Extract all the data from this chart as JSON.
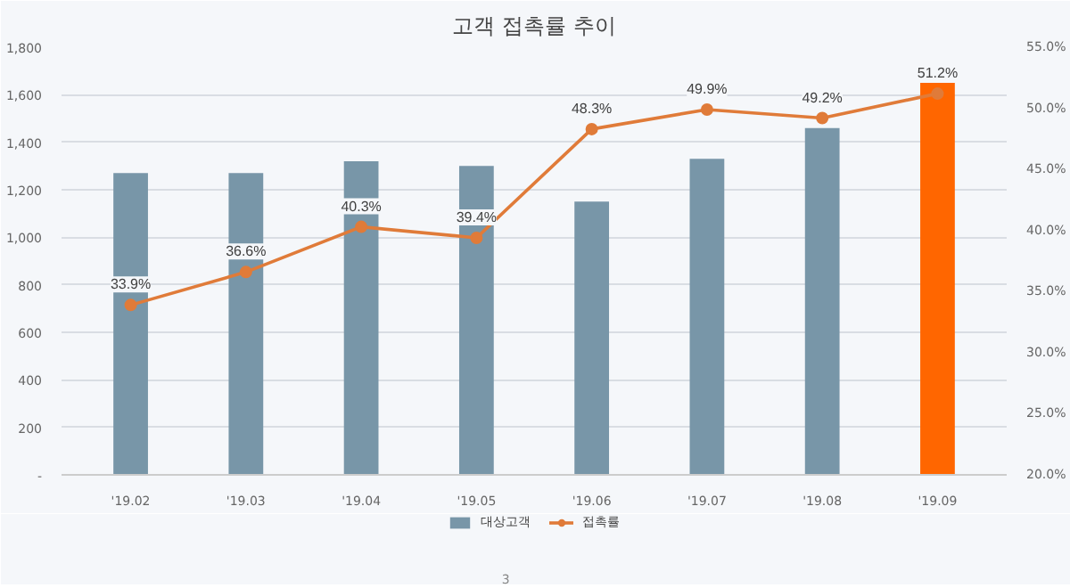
{
  "chart_data": {
    "type": "bar",
    "title": "고객 접촉률 추이",
    "categories": [
      "'19.02",
      "'19.03",
      "'19.04",
      "'19.05",
      "'19.06",
      "'19.07",
      "'19.08",
      "'19.09"
    ],
    "series": [
      {
        "name": "대상고객",
        "type": "bar",
        "color": "#7896a8",
        "colors": [
          "#7896a8",
          "#7896a8",
          "#7896a8",
          "#7896a8",
          "#7896a8",
          "#7896a8",
          "#7896a8",
          "#ff6600"
        ],
        "values": [
          1270,
          1270,
          1320,
          1300,
          1150,
          1330,
          1460,
          1650
        ]
      },
      {
        "name": "접촉률",
        "type": "line",
        "axis": "y2",
        "color": "#e07b39",
        "marker": "circle",
        "data_labels": true,
        "value_labels": [
          "33.9%",
          "36.6%",
          "40.3%",
          "39.4%",
          "48.3%",
          "49.9%",
          "49.2%",
          "51.2%"
        ],
        "values": [
          33.9,
          36.6,
          40.3,
          39.4,
          48.3,
          49.9,
          49.2,
          51.2
        ]
      }
    ],
    "ylim": [
      0,
      1800
    ],
    "yticks": [
      {
        "value": 0,
        "label": "-"
      },
      {
        "value": 200,
        "label": "200"
      },
      {
        "value": 400,
        "label": "400"
      },
      {
        "value": 600,
        "label": "600"
      },
      {
        "value": 800,
        "label": "800"
      },
      {
        "value": 1000,
        "label": "1,000"
      },
      {
        "value": 1200,
        "label": "1,200"
      },
      {
        "value": 1400,
        "label": "1,400"
      },
      {
        "value": 1600,
        "label": "1,600"
      },
      {
        "value": 1800,
        "label": "1,800"
      }
    ],
    "y2lim": [
      20,
      55
    ],
    "y2ticks": [
      {
        "value": 20,
        "label": "20.0%"
      },
      {
        "value": 25,
        "label": "25.0%"
      },
      {
        "value": 30,
        "label": "30.0%"
      },
      {
        "value": 35,
        "label": "35.0%"
      },
      {
        "value": 40,
        "label": "40.0%"
      },
      {
        "value": 45,
        "label": "45.0%"
      },
      {
        "value": 50,
        "label": "50.0%"
      },
      {
        "value": 55,
        "label": "55.0%"
      }
    ],
    "grid": "y",
    "legend": "bottom",
    "annotations": [
      "3"
    ]
  }
}
